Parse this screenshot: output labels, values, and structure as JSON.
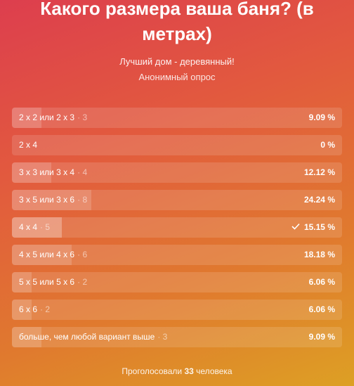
{
  "poll": {
    "question": "Какого размера ваша баня? (в метрах)",
    "subtitle": "Лучший дом - деревянный!",
    "type_label": "Анонимный опрос",
    "options": [
      {
        "label": "2 x 2 или 2 x 3",
        "votes": "3",
        "percent": "9.09 %",
        "fraction": 0.0909,
        "selected": false
      },
      {
        "label": "2 x 4",
        "votes": "",
        "percent": "0 %",
        "fraction": 0,
        "selected": false
      },
      {
        "label": "3 x 3 или 3 x 4",
        "votes": "4",
        "percent": "12.12 %",
        "fraction": 0.1212,
        "selected": false
      },
      {
        "label": "3 x 5 или 3 x 6",
        "votes": "8",
        "percent": "24.24 %",
        "fraction": 0.2424,
        "selected": false
      },
      {
        "label": "4 x 4",
        "votes": "5",
        "percent": "15.15 %",
        "fraction": 0.1515,
        "selected": true
      },
      {
        "label": "4 x 5 или 4 x 6",
        "votes": "6",
        "percent": "18.18 %",
        "fraction": 0.1818,
        "selected": false
      },
      {
        "label": "5 x 5 или 5 x 6",
        "votes": "2",
        "percent": "6.06 %",
        "fraction": 0.0606,
        "selected": false
      },
      {
        "label": "6 x 6",
        "votes": "2",
        "percent": "6.06 %",
        "fraction": 0.0606,
        "selected": false
      },
      {
        "label": "больше, чем любой вариант выше",
        "votes": "3",
        "percent": "9.09 %",
        "fraction": 0.0909,
        "selected": false
      }
    ],
    "footer_prefix": "Проголосовали",
    "footer_count": "33",
    "footer_suffix": "человека",
    "check_icon": "checkmark-icon"
  }
}
